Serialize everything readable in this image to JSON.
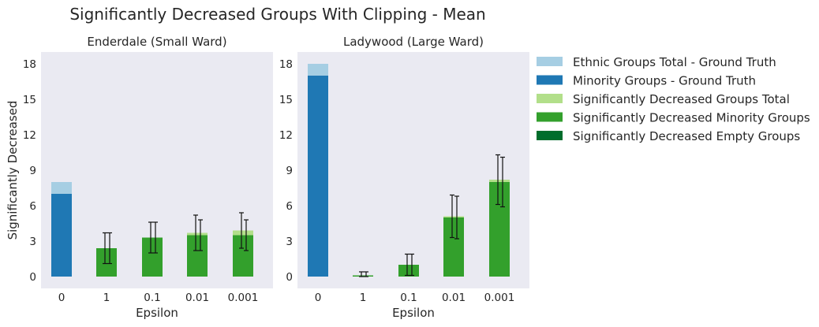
{
  "chart_data": {
    "type": "bar",
    "title": "Significantly Decreased Groups With Clipping - Mean",
    "ylabel": "Significantly Decreased",
    "xlabel": "Epsilon",
    "categories": [
      "0",
      "1",
      "0.1",
      "0.01",
      "0.001"
    ],
    "yticks": [
      "0",
      "3",
      "6",
      "9",
      "12",
      "15",
      "18"
    ],
    "ylim": [
      -1,
      19
    ],
    "grid": false,
    "legend_placement": "outside right",
    "legend": [
      {
        "label": "Ethnic Groups Total - Ground Truth",
        "color": "#a6cee3"
      },
      {
        "label": "Minority Groups - Ground Truth",
        "color": "#1f78b4"
      },
      {
        "label": "Significantly Decreased Groups Total",
        "color": "#b2df8a"
      },
      {
        "label": "Significantly Decreased Minority Groups",
        "color": "#33a02c"
      },
      {
        "label": "Significantly Decreased Empty Groups",
        "color": "#006d2c"
      }
    ],
    "panels": [
      {
        "subtitle": "Enderdale (Small Ward)",
        "ground_truth": {
          "total": 8,
          "minority": 7
        },
        "decreased_total": {
          "epsilons": [
            "1",
            "0.1",
            "0.01",
            "0.001"
          ],
          "values": [
            2.4,
            3.3,
            3.7,
            3.9
          ],
          "err": [
            1.3,
            1.3,
            1.5,
            1.5
          ]
        },
        "decreased_minority": {
          "epsilons": [
            "1",
            "0.1",
            "0.01",
            "0.001"
          ],
          "values": [
            2.4,
            3.3,
            3.5,
            3.5
          ],
          "err": [
            1.3,
            1.3,
            1.3,
            1.3
          ]
        }
      },
      {
        "subtitle": "Ladywood (Large Ward)",
        "ground_truth": {
          "total": 18,
          "minority": 17
        },
        "decreased_total": {
          "epsilons": [
            "1",
            "0.1",
            "0.01",
            "0.001"
          ],
          "values": [
            0.1,
            1.0,
            5.1,
            8.2
          ],
          "err": [
            0.3,
            0.9,
            1.8,
            2.1
          ]
        },
        "decreased_minority": {
          "epsilons": [
            "1",
            "0.1",
            "0.01",
            "0.001"
          ],
          "values": [
            0.1,
            1.0,
            5.0,
            8.0
          ],
          "err": [
            0.3,
            0.9,
            1.8,
            2.1
          ]
        }
      }
    ]
  }
}
